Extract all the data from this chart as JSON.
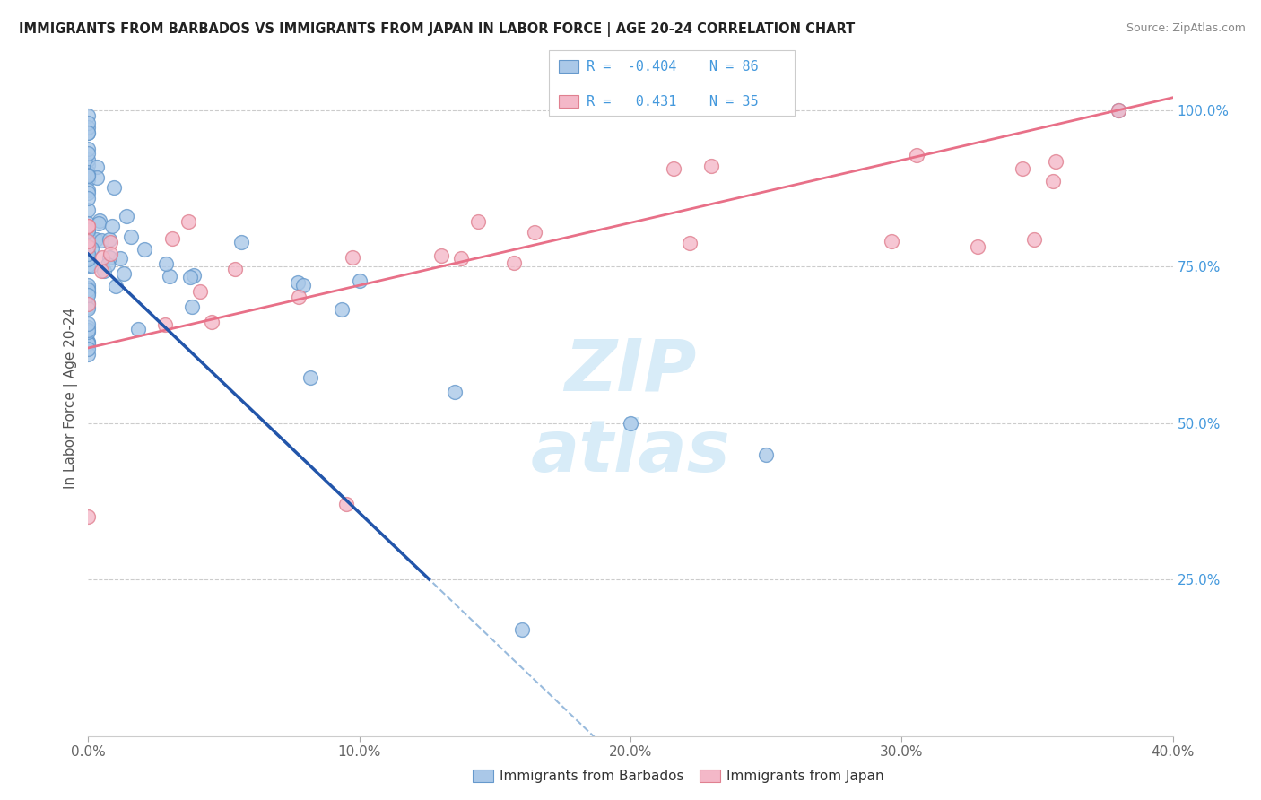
{
  "title": "IMMIGRANTS FROM BARBADOS VS IMMIGRANTS FROM JAPAN IN LABOR FORCE | AGE 20-24 CORRELATION CHART",
  "source": "Source: ZipAtlas.com",
  "ylabel": "In Labor Force | Age 20-24",
  "xlim": [
    0.0,
    0.4
  ],
  "ylim": [
    0.0,
    1.08
  ],
  "barbados_color": "#aac8e8",
  "barbados_edge_color": "#6699cc",
  "japan_color": "#f4b8c8",
  "japan_edge_color": "#e08090",
  "R_barbados": -0.404,
  "N_barbados": 86,
  "R_japan": 0.431,
  "N_japan": 35,
  "trend_barbados_color": "#2255aa",
  "trend_japan_color": "#e87088",
  "trend_barbados_dashed_color": "#99bbdd",
  "watermark_color": "#d8ecf8",
  "background_color": "#ffffff",
  "right_tick_color": "#4499dd",
  "legend_box_color": "#ffffff",
  "legend_box_edge": "#cccccc"
}
